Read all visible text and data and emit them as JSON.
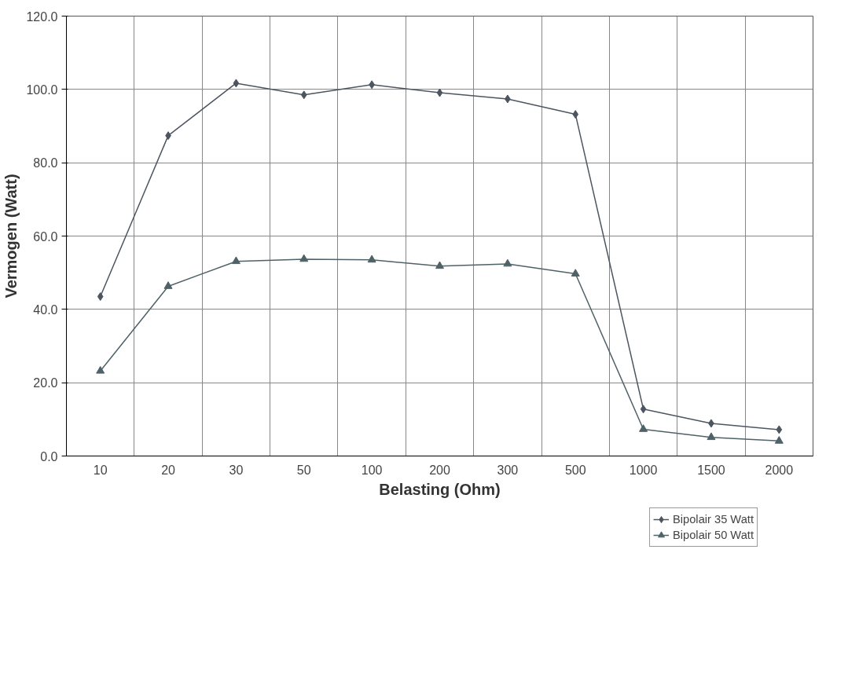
{
  "chart_data": {
    "type": "line",
    "xlabel": "Belasting (Ohm)",
    "ylabel": "Vermogen (Watt)",
    "categories": [
      "10",
      "20",
      "30",
      "50",
      "100",
      "200",
      "300",
      "500",
      "1000",
      "1500",
      "2000"
    ],
    "series": [
      {
        "name": "Bipolair 35 Watt",
        "color": "#4d5660",
        "marker": "diamond",
        "values": [
          43.5,
          87.4,
          101.7,
          98.5,
          101.3,
          99.1,
          97.4,
          93.2,
          12.8,
          8.9,
          7.2
        ]
      },
      {
        "name": "Bipolair 50 Watt",
        "color": "#4f6268",
        "marker": "triangle",
        "values": [
          23.2,
          46.3,
          53.1,
          53.7,
          53.5,
          51.8,
          52.4,
          49.7,
          7.3,
          5.1,
          4.1
        ]
      }
    ],
    "ylim": [
      0,
      120
    ],
    "yticks": [
      {
        "value": 0,
        "label": "0.0"
      },
      {
        "value": 20,
        "label": "20.0"
      },
      {
        "value": 40,
        "label": "40.0"
      },
      {
        "value": 60,
        "label": "60.0"
      },
      {
        "value": 80,
        "label": "80.0"
      },
      {
        "value": 100,
        "label": "100.0"
      },
      {
        "value": 120,
        "label": "120.0"
      }
    ],
    "grid": true,
    "legend": "bottom right",
    "line_style": "solid"
  }
}
